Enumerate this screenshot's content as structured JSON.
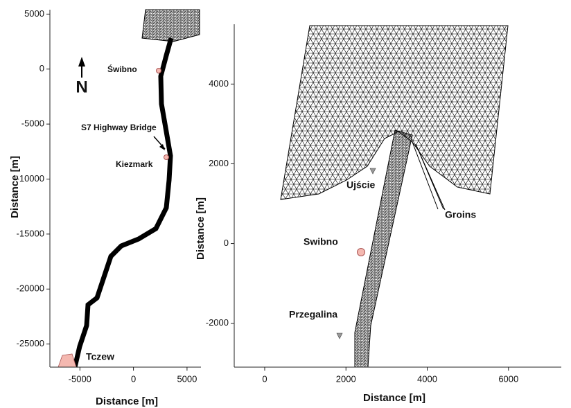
{
  "chart_data": [
    {
      "type": "map",
      "xlabel": "Distance [m]",
      "ylabel": "Distance [m]",
      "xlim": [
        -7800,
        6300
      ],
      "ylim": [
        -27100,
        5400
      ],
      "xticks": [
        -5000,
        0,
        5000
      ],
      "yticks": [
        5000,
        0,
        -5000,
        -10000,
        -15000,
        -20000,
        -25000
      ],
      "north": "N",
      "annotations": [
        "Świbno",
        "S7 Highway Bridge",
        "Kiezmark",
        "Tczew"
      ]
    },
    {
      "type": "map",
      "xlabel": "Distance [m]",
      "ylabel": "Distance [m]",
      "xlim": [
        -750,
        7300
      ],
      "ylim": [
        -3100,
        5500
      ],
      "xticks": [
        0,
        2000,
        4000,
        6000
      ],
      "yticks": [
        -2000,
        0,
        2000,
        4000
      ],
      "annotations": [
        "Ujście",
        "Groins",
        "Swibno",
        "Przegalina"
      ]
    }
  ]
}
